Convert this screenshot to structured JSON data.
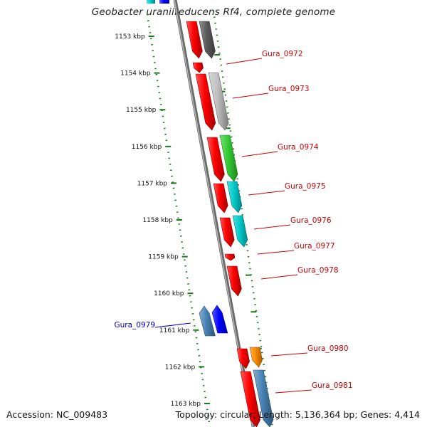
{
  "title": "Geobacter uraniireducens Rf4, complete genome",
  "footer": {
    "accession": "Accession: NC_009483",
    "summary": "Topology: circular; Length: 5,136,364 bp; Genes: 4,414"
  },
  "colors": {
    "backbone": "#8a8a8a",
    "ruler": "#1a7a1a",
    "forward_label": "#cc0000",
    "reverse_label": "#0000bb"
  },
  "ruler_ticks": [
    {
      "kbp": 1153,
      "label": "1153 kbp"
    },
    {
      "kbp": 1154,
      "label": "1154 kbp"
    },
    {
      "kbp": 1155,
      "label": "1155 kbp"
    },
    {
      "kbp": 1156,
      "label": "1156 kbp"
    },
    {
      "kbp": 1157,
      "label": "1157 kbp"
    },
    {
      "kbp": 1158,
      "label": "1158 kbp"
    },
    {
      "kbp": 1159,
      "label": "1159 kbp"
    },
    {
      "kbp": 1160,
      "label": "1160 kbp"
    },
    {
      "kbp": 1161,
      "label": "1161 kbp"
    },
    {
      "kbp": 1162,
      "label": "1162 kbp"
    },
    {
      "kbp": 1163,
      "label": "1163 kbp"
    }
  ],
  "genes": [
    {
      "name": "Gura_0972",
      "strand": "+",
      "cds_color": "#ff0000",
      "func_color": "#5a5a5a"
    },
    {
      "name": "Gura_0973",
      "strand": "+",
      "cds_color": "#ff0000",
      "func_color": "#c0c0c0"
    },
    {
      "name": "Gura_0974",
      "strand": "+",
      "cds_color": "#ff0000",
      "func_color": "#33cc33"
    },
    {
      "name": "Gura_0975",
      "strand": "+",
      "cds_color": "#ff0000",
      "func_color": "#00cccc"
    },
    {
      "name": "Gura_0976",
      "strand": "+",
      "cds_color": "#ff0000",
      "func_color": "#00cccc"
    },
    {
      "name": "Gura_0977",
      "strand": "+",
      "cds_color": "#ff0000",
      "func_color": ""
    },
    {
      "name": "Gura_0978",
      "strand": "+",
      "cds_color": "#ff0000",
      "func_color": ""
    },
    {
      "name": "Gura_0979",
      "strand": "-",
      "cds_color": "#0000ff",
      "func_color": "#4682b4"
    },
    {
      "name": "Gura_0980",
      "strand": "+",
      "cds_color": "#ff0000",
      "func_color": "#ff8c00"
    },
    {
      "name": "Gura_0981",
      "strand": "+",
      "cds_color": "#ff0000",
      "func_color": "#4682b4"
    }
  ],
  "partial_top": {
    "cds_color": "#0000ff",
    "func_color": "#00cccc"
  }
}
